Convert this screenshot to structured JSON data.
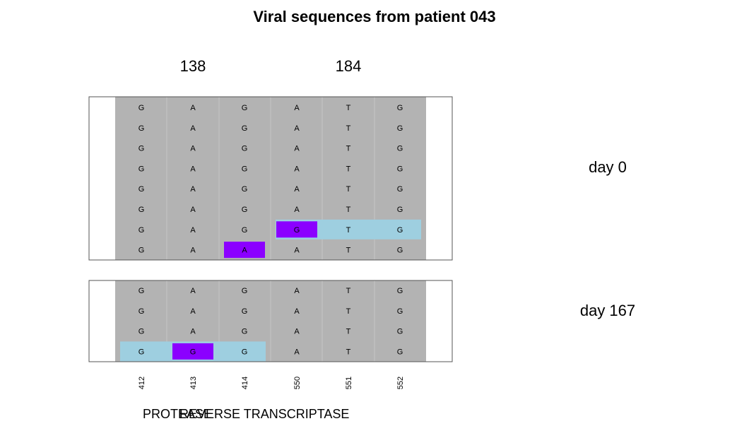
{
  "chart_data": {
    "type": "heatmap",
    "title": "Viral sequences from patient 043",
    "codon_labels": [
      "138",
      "184"
    ],
    "positions": [
      "412",
      "413",
      "414",
      "550",
      "551",
      "552"
    ],
    "regions": [
      "PROTEASE",
      "REVERSE TRANSCRIPTASE"
    ],
    "colors": {
      "background": "#b3b3b3",
      "codon_highlight": "#9ecfe0",
      "mutation": "#8b00ff",
      "border": "#555555"
    },
    "panels": [
      {
        "label": "day 0",
        "rows": [
          [
            "G",
            "A",
            "G",
            "A",
            "T",
            "G"
          ],
          [
            "G",
            "A",
            "G",
            "A",
            "T",
            "G"
          ],
          [
            "G",
            "A",
            "G",
            "A",
            "T",
            "G"
          ],
          [
            "G",
            "A",
            "G",
            "A",
            "T",
            "G"
          ],
          [
            "G",
            "A",
            "G",
            "A",
            "T",
            "G"
          ],
          [
            "G",
            "A",
            "G",
            "A",
            "T",
            "G"
          ],
          [
            "G",
            "A",
            "G",
            "G",
            "T",
            "G"
          ],
          [
            "G",
            "A",
            "A",
            "A",
            "T",
            "G"
          ]
        ],
        "mutations": [
          [
            6,
            3
          ],
          [
            7,
            2
          ]
        ],
        "codon_highlights": [
          [
            6,
            3,
            5
          ]
        ]
      },
      {
        "label": "day 167",
        "rows": [
          [
            "G",
            "A",
            "G",
            "A",
            "T",
            "G"
          ],
          [
            "G",
            "A",
            "G",
            "A",
            "T",
            "G"
          ],
          [
            "G",
            "A",
            "G",
            "A",
            "T",
            "G"
          ],
          [
            "G",
            "G",
            "G",
            "A",
            "T",
            "G"
          ]
        ],
        "mutations": [
          [
            3,
            1
          ]
        ],
        "codon_highlights": [
          [
            3,
            0,
            2
          ]
        ]
      }
    ]
  }
}
